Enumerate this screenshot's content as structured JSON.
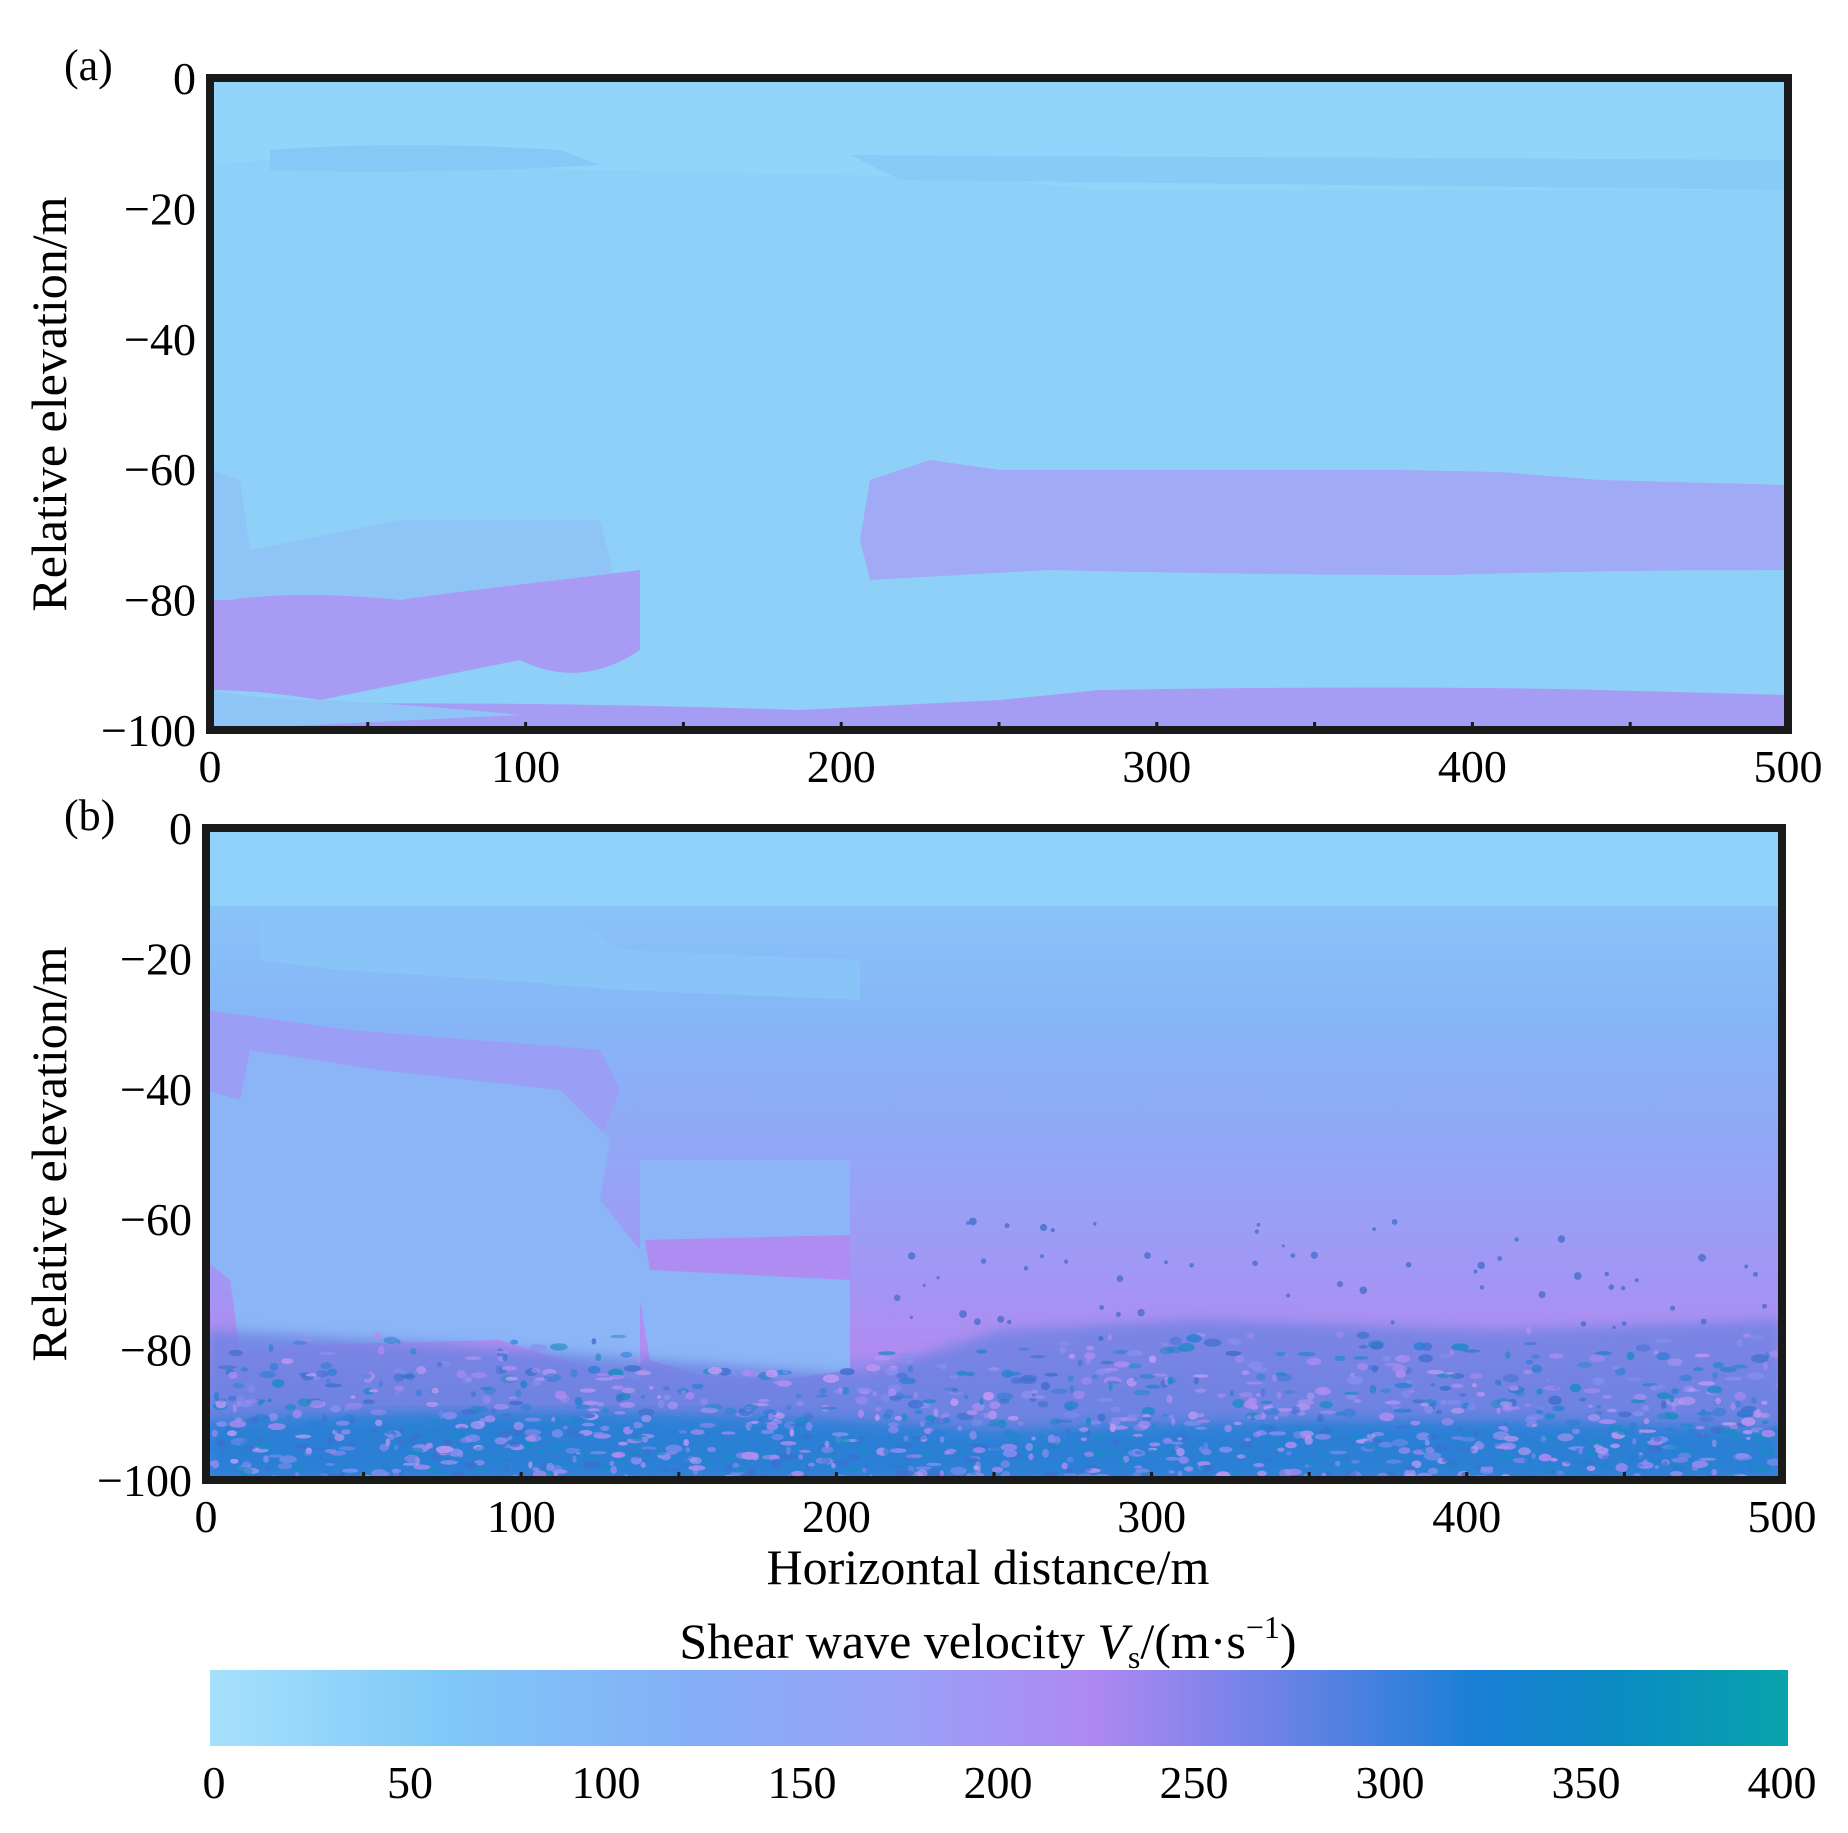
{
  "panels": [
    {
      "label": "(a)",
      "ylabel": "Relative elevation/m",
      "xlabel": "",
      "x_ticks": [
        "0",
        "100",
        "200",
        "300",
        "400",
        "500"
      ],
      "y_ticks": [
        "0",
        "−20",
        "−40",
        "−60",
        "−80",
        "−100"
      ]
    },
    {
      "label": "(b)",
      "ylabel": "Relative elevation/m",
      "xlabel": "Horizontal distance/m",
      "x_ticks": [
        "0",
        "100",
        "200",
        "300",
        "400",
        "500"
      ],
      "y_ticks": [
        "0",
        "−20",
        "−40",
        "−60",
        "−80",
        "−100"
      ]
    }
  ],
  "colorbar": {
    "title_prefix": "Shear wave velocity ",
    "title_var": "V",
    "title_sub": "s",
    "title_suffix_open": "/(m·s",
    "title_sup": "−1",
    "title_suffix_close": ")",
    "ticks": [
      "0",
      "50",
      "100",
      "150",
      "200",
      "250",
      "300",
      "350",
      "400"
    ]
  },
  "chart_data": [
    {
      "type": "heatmap",
      "panel": "(a)",
      "xlim": [
        0,
        500
      ],
      "ylim": [
        -100,
        0
      ],
      "x_unit": "m",
      "y_unit": "m",
      "value_unit": "m/s",
      "layers": [
        {
          "x_range": [
            0,
            500
          ],
          "y_range": [
            -100,
            0
          ],
          "vs": 70
        },
        {
          "x_range": [
            0,
            500
          ],
          "y_range": [
            -15,
            0
          ],
          "vs": 60
        },
        {
          "x_range": [
            0,
            140
          ],
          "y_range": [
            -95,
            -62
          ],
          "vs": 100
        },
        {
          "x_range": [
            0,
            135
          ],
          "y_range": [
            -95,
            -80
          ],
          "vs": 170
        },
        {
          "x_range": [
            205,
            500
          ],
          "y_range": [
            -77,
            -62
          ],
          "vs": 140
        },
        {
          "x_range": [
            0,
            500
          ],
          "y_range": [
            -100,
            -95
          ],
          "vs": 170
        }
      ]
    },
    {
      "type": "heatmap",
      "panel": "(b)",
      "xlim": [
        0,
        500
      ],
      "ylim": [
        -100,
        0
      ],
      "x_unit": "m",
      "y_unit": "m",
      "value_unit": "m/s",
      "layers": [
        {
          "x_range": [
            0,
            500
          ],
          "y_range": [
            -12,
            0
          ],
          "vs": 60
        },
        {
          "x_range": [
            0,
            500
          ],
          "y_range": [
            -30,
            -12
          ],
          "vs": 90
        },
        {
          "x_range": [
            205,
            500
          ],
          "y_range": [
            -60,
            -30
          ],
          "vs": 160
        },
        {
          "x_range": [
            205,
            500
          ],
          "y_range": [
            -80,
            -60
          ],
          "vs": 220
        },
        {
          "x_range": [
            0,
            500
          ],
          "y_range": [
            -100,
            -80
          ],
          "vs": 300
        },
        {
          "x_range": [
            0,
            135
          ],
          "y_range": [
            -58,
            -30
          ],
          "vs": 160
        },
        {
          "x_range": [
            10,
            140
          ],
          "y_range": [
            -80,
            -45
          ],
          "vs": 100
        },
        {
          "x_range": [
            140,
            205
          ],
          "y_range": [
            -84,
            -50
          ],
          "vs": 100
        },
        {
          "x_range": [
            140,
            205
          ],
          "y_range": [
            -70,
            -62
          ],
          "vs": 220
        }
      ]
    }
  ]
}
